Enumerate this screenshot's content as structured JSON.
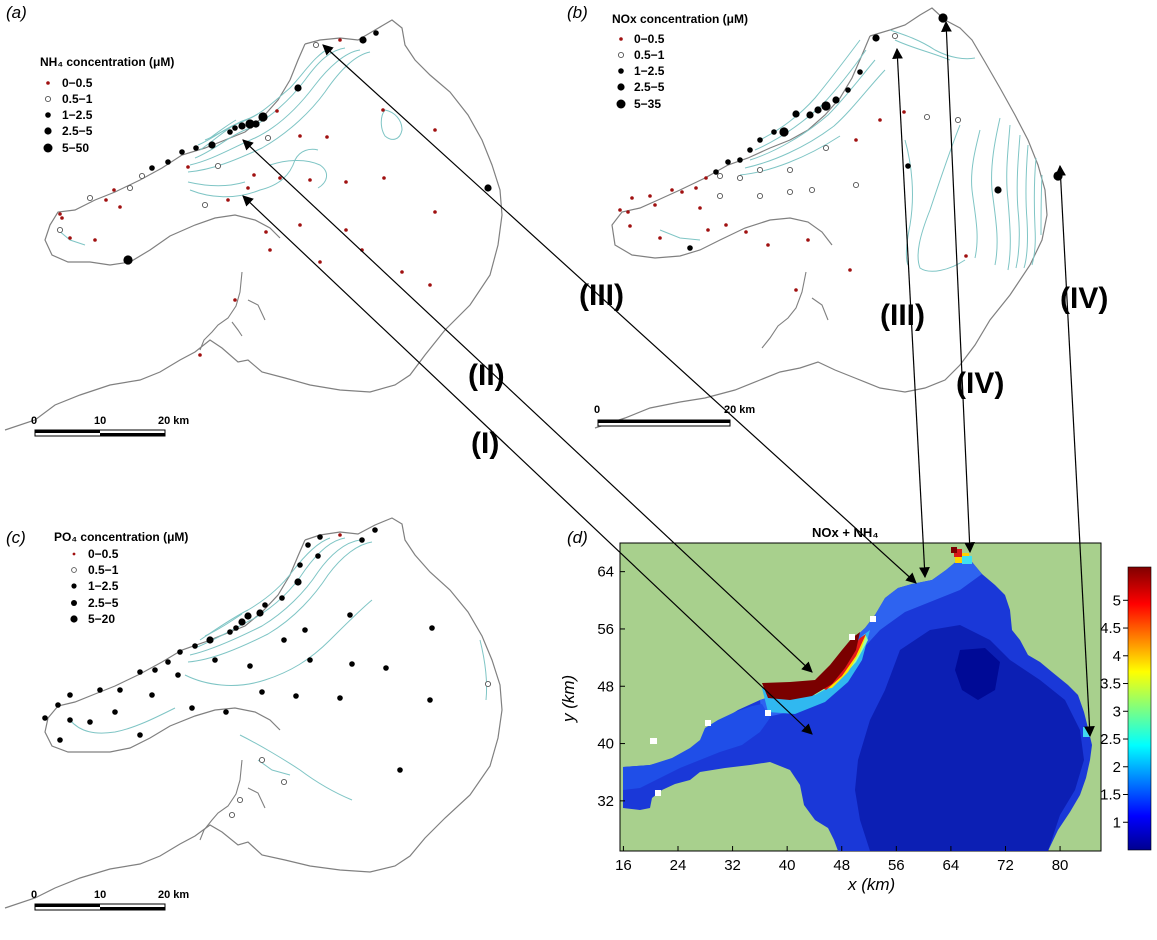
{
  "panels": {
    "a": {
      "letter": "(a)",
      "legend_title": "NH₄ concentration (μM)",
      "legend_items": [
        "0−0.5",
        "0.5−1",
        "1−2.5",
        "2.5−5",
        "5−50"
      ],
      "scale_labels": [
        "0",
        "10",
        "20 km"
      ]
    },
    "b": {
      "letter": "(b)",
      "legend_title": "NOx concentration (μM)",
      "legend_items": [
        "0−0.5",
        "0.5−1",
        "1−2.5",
        "2.5−5",
        "5−35"
      ],
      "scale_labels": [
        "0",
        "20 km"
      ]
    },
    "c": {
      "letter": "(c)",
      "legend_title": "PO₄ concentration (μM)",
      "legend_items": [
        "0−0.5",
        "0.5−1",
        "1−2.5",
        "2.5−5",
        "5−20"
      ],
      "scale_labels": [
        "0",
        "10",
        "20 km"
      ]
    },
    "d": {
      "letter": "(d)",
      "title": "NOx + NH₄",
      "xlabel": "x (km)",
      "ylabel": "y (km)"
    }
  },
  "arrow_labels": [
    "(I)",
    "(II)",
    "(III)",
    "(III)",
    "(IV)",
    "(IV)"
  ],
  "colors": {
    "land": "#a8d08d",
    "coast": "#808080",
    "contour": "#7fc5c5",
    "dot_red": "#a01010",
    "dot_black": "#000000",
    "arrow": "#000000"
  },
  "chart_data": {
    "type": "heatmap",
    "title": "NOx + NH₄",
    "xlabel": "x (km)",
    "ylabel": "y (km)",
    "x_ticks": [
      16,
      24,
      32,
      40,
      48,
      56,
      64,
      72,
      80
    ],
    "y_ticks": [
      32,
      40,
      48,
      56,
      64
    ],
    "xlim": [
      15.5,
      86
    ],
    "ylim": [
      25,
      68
    ],
    "colorbar": {
      "ticks": [
        1,
        1.5,
        2,
        2.5,
        3,
        3.5,
        4,
        4.5,
        5
      ],
      "range": [
        0.5,
        5.6
      ],
      "colormap": "jet"
    },
    "land_color": "#a8d08d"
  }
}
